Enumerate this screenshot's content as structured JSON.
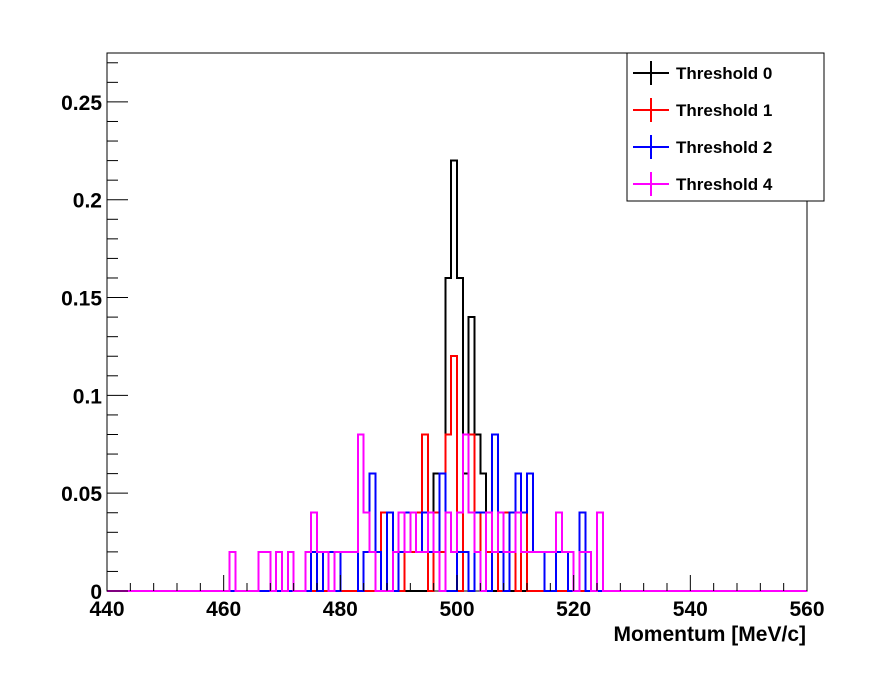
{
  "chart_data": {
    "type": "histogram-step",
    "xlabel": "Momentum [MeV/c]",
    "ylabel": "",
    "xlim": [
      440,
      560
    ],
    "ylim": [
      0,
      0.275
    ],
    "bin_width": 1,
    "x_ticks": [
      440,
      460,
      480,
      500,
      520,
      540,
      560
    ],
    "x_tick_labels": [
      "440",
      "460",
      "480",
      "500",
      "520",
      "540",
      "560"
    ],
    "y_ticks": [
      0,
      0.05,
      0.1,
      0.15,
      0.2,
      0.25
    ],
    "y_tick_labels": [
      "0",
      "0.05",
      "0.1",
      "0.15",
      "0.2",
      "0.25"
    ],
    "grid": false,
    "legend_position": "top-right",
    "series": [
      {
        "name": "Threshold 0",
        "color": "#000000",
        "bins": [
          {
            "x": 495,
            "y": 0.04
          },
          {
            "x": 496,
            "y": 0.06
          },
          {
            "x": 497,
            "y": 0.06
          },
          {
            "x": 498,
            "y": 0.16
          },
          {
            "x": 499,
            "y": 0.22
          },
          {
            "x": 500,
            "y": 0.16
          },
          {
            "x": 501,
            "y": 0.06
          },
          {
            "x": 502,
            "y": 0.14
          },
          {
            "x": 503,
            "y": 0.08
          },
          {
            "x": 504,
            "y": 0.06
          }
        ]
      },
      {
        "name": "Threshold 1",
        "color": "#ff0000",
        "bins": [
          {
            "x": 487,
            "y": 0.04
          },
          {
            "x": 488,
            "y": 0.04
          },
          {
            "x": 489,
            "y": 0.02
          },
          {
            "x": 491,
            "y": 0.04
          },
          {
            "x": 492,
            "y": 0.02
          },
          {
            "x": 493,
            "y": 0.04
          },
          {
            "x": 494,
            "y": 0.08
          },
          {
            "x": 496,
            "y": 0.04
          },
          {
            "x": 497,
            "y": 0.02
          },
          {
            "x": 498,
            "y": 0.08
          },
          {
            "x": 499,
            "y": 0.12
          },
          {
            "x": 501,
            "y": 0.08
          },
          {
            "x": 502,
            "y": 0.08
          },
          {
            "x": 503,
            "y": 0.04
          },
          {
            "x": 505,
            "y": 0.02
          },
          {
            "x": 506,
            "y": 0.02
          },
          {
            "x": 508,
            "y": 0.04
          },
          {
            "x": 509,
            "y": 0.02
          },
          {
            "x": 511,
            "y": 0.04
          }
        ]
      },
      {
        "name": "Threshold 2",
        "color": "#0000ff",
        "bins": [
          {
            "x": 475,
            "y": 0.02
          },
          {
            "x": 477,
            "y": 0.02
          },
          {
            "x": 478,
            "y": 0.02
          },
          {
            "x": 480,
            "y": 0.02
          },
          {
            "x": 481,
            "y": 0.02
          },
          {
            "x": 482,
            "y": 0.02
          },
          {
            "x": 484,
            "y": 0.02
          },
          {
            "x": 485,
            "y": 0.06
          },
          {
            "x": 486,
            "y": 0.02
          },
          {
            "x": 488,
            "y": 0.04
          },
          {
            "x": 490,
            "y": 0.02
          },
          {
            "x": 491,
            "y": 0.04
          },
          {
            "x": 492,
            "y": 0.04
          },
          {
            "x": 493,
            "y": 0.02
          },
          {
            "x": 494,
            "y": 0.04
          },
          {
            "x": 495,
            "y": 0.02
          },
          {
            "x": 496,
            "y": 0.02
          },
          {
            "x": 497,
            "y": 0.06
          },
          {
            "x": 500,
            "y": 0.02
          },
          {
            "x": 501,
            "y": 0.02
          },
          {
            "x": 503,
            "y": 0.04
          },
          {
            "x": 504,
            "y": 0.04
          },
          {
            "x": 506,
            "y": 0.08
          },
          {
            "x": 507,
            "y": 0.02
          },
          {
            "x": 509,
            "y": 0.04
          },
          {
            "x": 510,
            "y": 0.06
          },
          {
            "x": 511,
            "y": 0.04
          },
          {
            "x": 512,
            "y": 0.06
          },
          {
            "x": 513,
            "y": 0.02
          },
          {
            "x": 514,
            "y": 0.02
          },
          {
            "x": 517,
            "y": 0.02
          },
          {
            "x": 518,
            "y": 0.02
          },
          {
            "x": 521,
            "y": 0.04
          }
        ]
      },
      {
        "name": "Threshold 4",
        "color": "#ff00ff",
        "bins": [
          {
            "x": 461,
            "y": 0.02
          },
          {
            "x": 466,
            "y": 0.02
          },
          {
            "x": 467,
            "y": 0.02
          },
          {
            "x": 469,
            "y": 0.02
          },
          {
            "x": 471,
            "y": 0.02
          },
          {
            "x": 474,
            "y": 0.02
          },
          {
            "x": 475,
            "y": 0.04
          },
          {
            "x": 476,
            "y": 0.02
          },
          {
            "x": 477,
            "y": 0.02
          },
          {
            "x": 479,
            "y": 0.02
          },
          {
            "x": 480,
            "y": 0.02
          },
          {
            "x": 481,
            "y": 0.02
          },
          {
            "x": 482,
            "y": 0.02
          },
          {
            "x": 483,
            "y": 0.08
          },
          {
            "x": 484,
            "y": 0.04
          },
          {
            "x": 485,
            "y": 0.02
          },
          {
            "x": 489,
            "y": 0.02
          },
          {
            "x": 490,
            "y": 0.04
          },
          {
            "x": 491,
            "y": 0.02
          },
          {
            "x": 492,
            "y": 0.04
          },
          {
            "x": 493,
            "y": 0.02
          },
          {
            "x": 494,
            "y": 0.02
          },
          {
            "x": 495,
            "y": 0.04
          },
          {
            "x": 496,
            "y": 0.02
          },
          {
            "x": 498,
            "y": 0.04
          },
          {
            "x": 499,
            "y": 0.02
          },
          {
            "x": 500,
            "y": 0.04
          },
          {
            "x": 501,
            "y": 0.08
          },
          {
            "x": 502,
            "y": 0.04
          },
          {
            "x": 503,
            "y": 0.02
          },
          {
            "x": 505,
            "y": 0.04
          },
          {
            "x": 506,
            "y": 0.02
          },
          {
            "x": 507,
            "y": 0.04
          },
          {
            "x": 508,
            "y": 0.02
          },
          {
            "x": 509,
            "y": 0.02
          },
          {
            "x": 510,
            "y": 0.04
          },
          {
            "x": 511,
            "y": 0.02
          },
          {
            "x": 512,
            "y": 0.02
          },
          {
            "x": 513,
            "y": 0.02
          },
          {
            "x": 514,
            "y": 0.02
          },
          {
            "x": 515,
            "y": 0.02
          },
          {
            "x": 516,
            "y": 0.02
          },
          {
            "x": 517,
            "y": 0.04
          },
          {
            "x": 518,
            "y": 0.02
          },
          {
            "x": 519,
            "y": 0.02
          },
          {
            "x": 521,
            "y": 0.02
          },
          {
            "x": 522,
            "y": 0.02
          },
          {
            "x": 524,
            "y": 0.04
          }
        ]
      }
    ]
  }
}
